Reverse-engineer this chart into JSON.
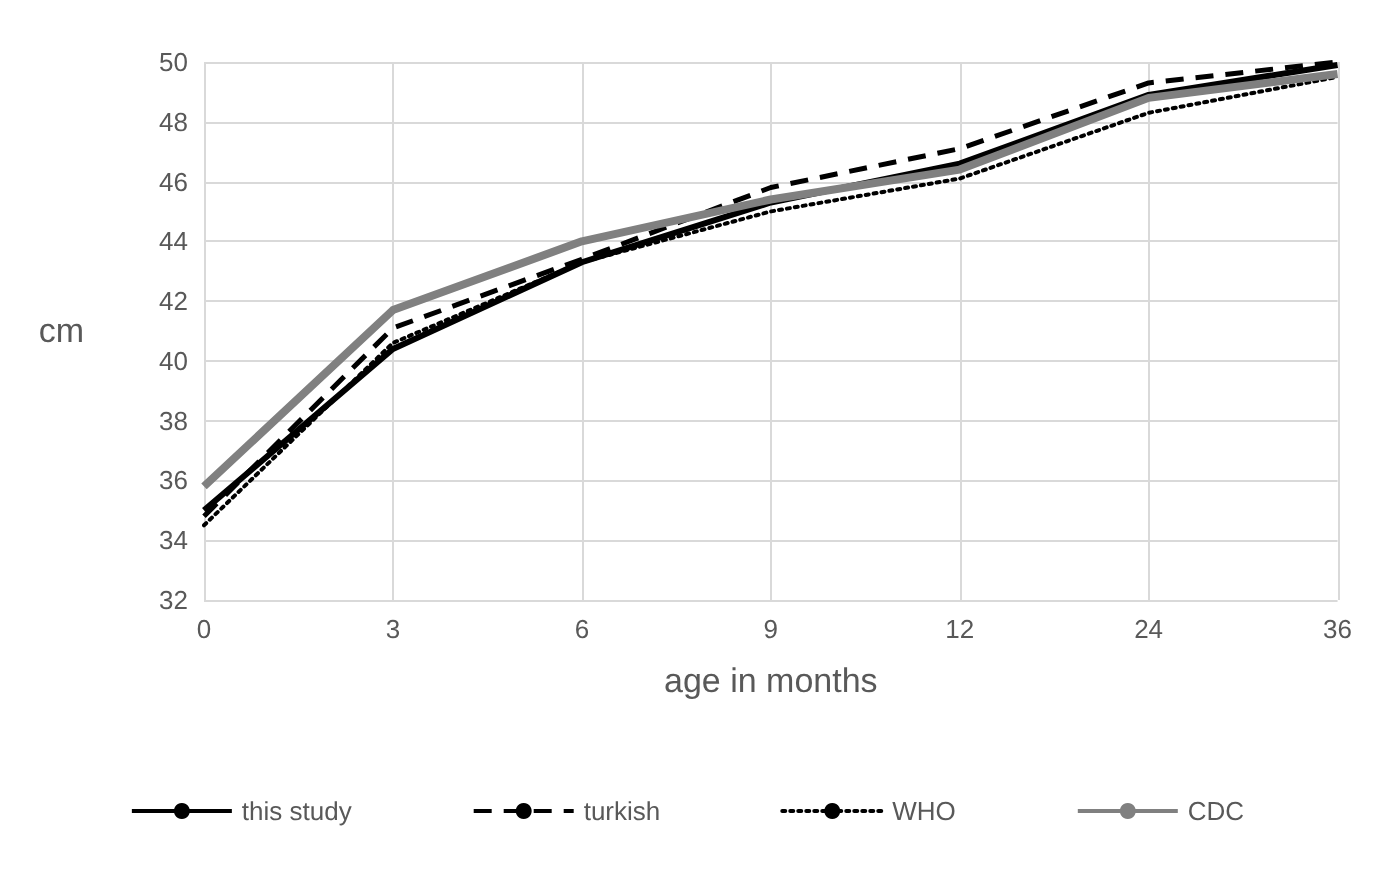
{
  "chart_data": {
    "type": "line",
    "xlabel": "age in months",
    "ylabel": "cm",
    "categories": [
      "0",
      "3",
      "6",
      "9",
      "12",
      "24",
      "36"
    ],
    "ylim": [
      32,
      50
    ],
    "yticks": [
      32,
      34,
      36,
      38,
      40,
      42,
      44,
      46,
      48,
      50
    ],
    "grid": true,
    "legend": "bottom",
    "marker": "none",
    "series": [
      {
        "name": "this study",
        "color": "#000000",
        "line_style": "solid",
        "values": [
          35.0,
          40.4,
          43.3,
          45.3,
          46.6,
          48.9,
          49.9
        ]
      },
      {
        "name": "turkish",
        "color": "#000000",
        "line_style": "dashed",
        "values": [
          34.8,
          41.1,
          43.4,
          45.8,
          47.1,
          49.3,
          50.0
        ]
      },
      {
        "name": "WHO",
        "color": "#000000",
        "line_style": "dotted",
        "values": [
          34.5,
          40.6,
          43.3,
          45.0,
          46.1,
          48.3,
          49.5
        ]
      },
      {
        "name": "CDC",
        "color": "#808080",
        "line_style": "solid",
        "values": [
          35.8,
          41.7,
          44.0,
          45.4,
          46.4,
          48.8,
          49.6
        ]
      }
    ]
  }
}
